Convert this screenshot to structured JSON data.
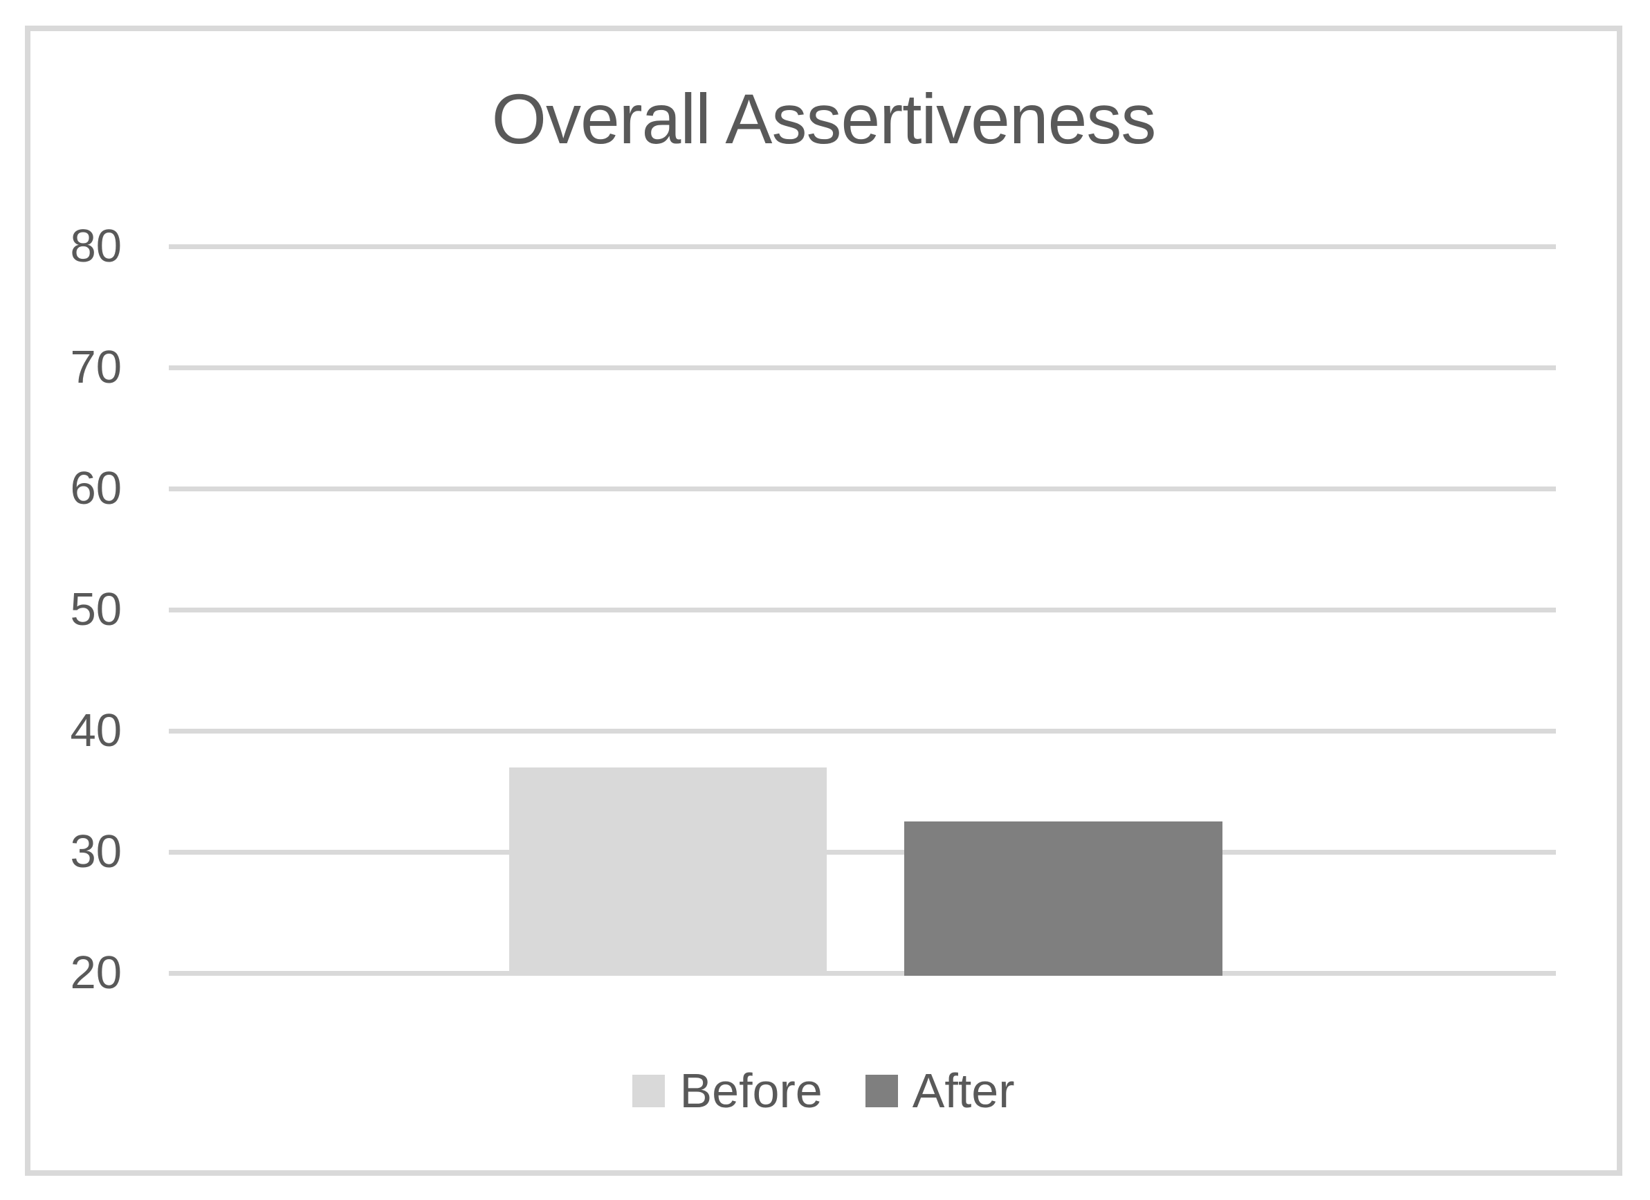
{
  "chart_data": {
    "type": "bar",
    "title": "Overall Assertiveness",
    "categories": [
      ""
    ],
    "series": [
      {
        "name": "Before",
        "values": [
          37
        ],
        "color": "#d9d9d9"
      },
      {
        "name": "After",
        "values": [
          32.5
        ],
        "color": "#7f7f7f"
      }
    ],
    "xlabel": "",
    "ylabel": "",
    "ylim": [
      20,
      80
    ],
    "yticks": [
      20,
      30,
      40,
      50,
      60,
      70,
      80
    ],
    "grid": "horizontal-gridlines-only",
    "legend_position": "bottom-center"
  },
  "colors": {
    "text": "#595959",
    "gridline": "#d9d9d9",
    "frame_border": "#d9d9d9",
    "background": "#ffffff"
  }
}
